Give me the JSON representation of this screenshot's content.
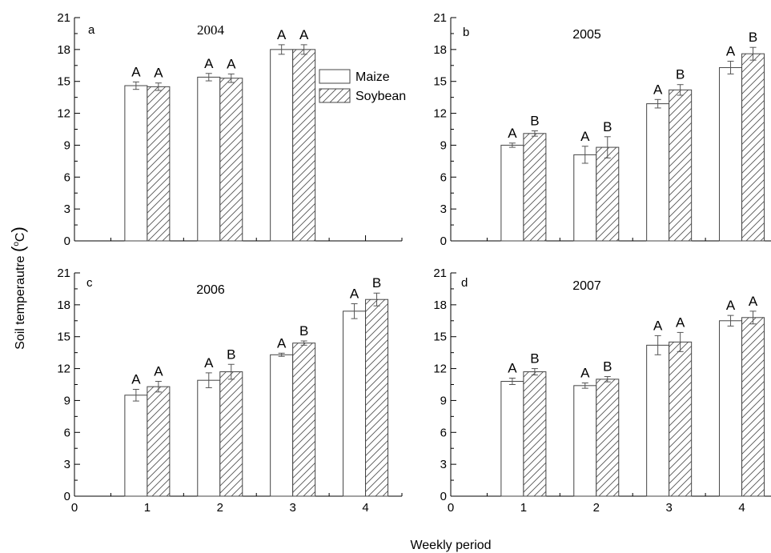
{
  "chart_data": {
    "type": "bar",
    "xlabel": "Weekly period",
    "ylabel": "Soil temperautre (°C)",
    "ylabel_parts": {
      "text": "Soil temperautre ",
      "open": "(",
      "sup": "o",
      "unit": "C",
      "close": ")"
    },
    "xlim": [
      0,
      4.5
    ],
    "ylim": [
      0,
      21
    ],
    "yticks": [
      0,
      3,
      6,
      9,
      12,
      15,
      18,
      21
    ],
    "xticks": [
      0,
      1,
      2,
      3,
      4
    ],
    "grid": false,
    "legend": {
      "location": "top-right of panel a",
      "entries": [
        {
          "name": "Maize",
          "pattern": "open"
        },
        {
          "name": "Soybean",
          "pattern": "hatched"
        }
      ]
    },
    "panels": [
      {
        "letter": "a",
        "year": "2004",
        "categories": [
          1,
          2,
          3
        ],
        "series": [
          {
            "name": "Maize",
            "values": [
              14.6,
              15.4,
              18.0
            ],
            "errors": [
              0.35,
              0.35,
              0.45
            ],
            "labels": [
              "A",
              "A",
              "A"
            ]
          },
          {
            "name": "Soybean",
            "values": [
              14.5,
              15.3,
              18.0
            ],
            "errors": [
              0.35,
              0.4,
              0.45
            ],
            "labels": [
              "A",
              "A",
              "A"
            ]
          }
        ]
      },
      {
        "letter": "b",
        "year": "2005",
        "categories": [
          1,
          2,
          3,
          4
        ],
        "series": [
          {
            "name": "Maize",
            "values": [
              9.0,
              8.1,
              12.9,
              16.3
            ],
            "errors": [
              0.2,
              0.8,
              0.4,
              0.6
            ],
            "labels": [
              "A",
              "A",
              "A",
              "A"
            ]
          },
          {
            "name": "Soybean",
            "values": [
              10.1,
              8.8,
              14.2,
              17.6
            ],
            "errors": [
              0.25,
              1.0,
              0.5,
              0.6
            ],
            "labels": [
              "B",
              "B",
              "B",
              "B"
            ]
          }
        ]
      },
      {
        "letter": "c",
        "year": "2006",
        "categories": [
          1,
          2,
          3,
          4
        ],
        "series": [
          {
            "name": "Maize",
            "values": [
              9.5,
              10.9,
              13.3,
              17.4
            ],
            "errors": [
              0.55,
              0.7,
              0.15,
              0.7
            ],
            "labels": [
              "A",
              "A",
              "A",
              "A"
            ]
          },
          {
            "name": "Soybean",
            "values": [
              10.3,
              11.7,
              14.4,
              18.5
            ],
            "errors": [
              0.5,
              0.7,
              0.2,
              0.6
            ],
            "labels": [
              "A",
              "B",
              "B",
              "B"
            ]
          }
        ]
      },
      {
        "letter": "d",
        "year": "2007",
        "categories": [
          1,
          2,
          3,
          4
        ],
        "series": [
          {
            "name": "Maize",
            "values": [
              10.8,
              10.4,
              14.2,
              16.5
            ],
            "errors": [
              0.3,
              0.25,
              0.9,
              0.5
            ],
            "labels": [
              "A",
              "A",
              "A",
              "A"
            ]
          },
          {
            "name": "Soybean",
            "values": [
              11.7,
              11.0,
              14.5,
              16.8
            ],
            "errors": [
              0.3,
              0.25,
              0.9,
              0.6
            ],
            "labels": [
              "B",
              "B",
              "A",
              "A"
            ]
          }
        ]
      }
    ]
  },
  "colors": {
    "maize_fill": "#ffffff",
    "soybean_hatch": "#555555",
    "bar_outline": "#444444",
    "error_bar": "#555555",
    "axis": "#000000"
  }
}
